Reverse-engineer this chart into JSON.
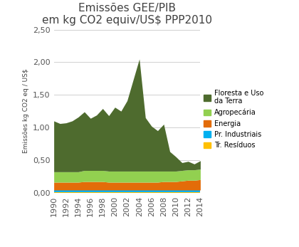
{
  "title": "Emissões GEE/PIB\nem kg CO2 equiv/US$ PPP2010",
  "ylabel": "Emissões kg CO2 eq / US$",
  "years": [
    1990,
    1991,
    1992,
    1993,
    1994,
    1995,
    1996,
    1997,
    1998,
    1999,
    2000,
    2001,
    2002,
    2003,
    2004,
    2005,
    2006,
    2007,
    2008,
    2009,
    2010,
    2011,
    2012,
    2013,
    2014
  ],
  "series": {
    "Tr. Resíduos": [
      0.01,
      0.01,
      0.01,
      0.01,
      0.01,
      0.01,
      0.01,
      0.01,
      0.01,
      0.01,
      0.01,
      0.01,
      0.01,
      0.01,
      0.01,
      0.01,
      0.01,
      0.01,
      0.01,
      0.01,
      0.01,
      0.01,
      0.01,
      0.01,
      0.01
    ],
    "Pr. Industriais": [
      0.03,
      0.03,
      0.03,
      0.03,
      0.03,
      0.03,
      0.03,
      0.03,
      0.03,
      0.03,
      0.03,
      0.03,
      0.03,
      0.03,
      0.03,
      0.03,
      0.03,
      0.03,
      0.03,
      0.03,
      0.03,
      0.03,
      0.03,
      0.03,
      0.03
    ],
    "Energia": [
      0.12,
      0.12,
      0.12,
      0.12,
      0.12,
      0.13,
      0.13,
      0.13,
      0.13,
      0.12,
      0.12,
      0.12,
      0.12,
      0.12,
      0.12,
      0.12,
      0.12,
      0.12,
      0.13,
      0.13,
      0.13,
      0.14,
      0.15,
      0.15,
      0.16
    ],
    "Agropecária": [
      0.16,
      0.16,
      0.16,
      0.16,
      0.16,
      0.17,
      0.17,
      0.17,
      0.17,
      0.17,
      0.17,
      0.17,
      0.17,
      0.17,
      0.17,
      0.17,
      0.17,
      0.17,
      0.16,
      0.16,
      0.16,
      0.16,
      0.16,
      0.16,
      0.16
    ],
    "Floresta e Uso\nda Terra": [
      0.78,
      0.74,
      0.75,
      0.78,
      0.84,
      0.9,
      0.8,
      0.85,
      0.95,
      0.85,
      0.98,
      0.92,
      1.08,
      1.4,
      1.72,
      0.82,
      0.69,
      0.62,
      0.72,
      0.3,
      0.22,
      0.12,
      0.13,
      0.09,
      0.13
    ]
  },
  "colors": {
    "Tr. Resíduos": "#FFC000",
    "Pr. Industriais": "#00B0F0",
    "Energia": "#E36C09",
    "Agropecária": "#92D050",
    "Floresta e Uso\nda Terra": "#4E6B2E"
  },
  "ylim": [
    0,
    2.5
  ],
  "yticks": [
    0.0,
    0.5,
    1.0,
    1.5,
    2.0,
    2.5
  ],
  "ytick_labels": [
    "0,00",
    "0,50",
    "1,00",
    "1,50",
    "2,00",
    "2,50"
  ],
  "background_color": "#ffffff",
  "title_fontsize": 11,
  "axis_fontsize": 8,
  "legend_labels": [
    "Floresta e Uso\nda Terra",
    "Agropecária",
    "Energia",
    "Pr. Industriais",
    "Tr. Resíduos"
  ]
}
